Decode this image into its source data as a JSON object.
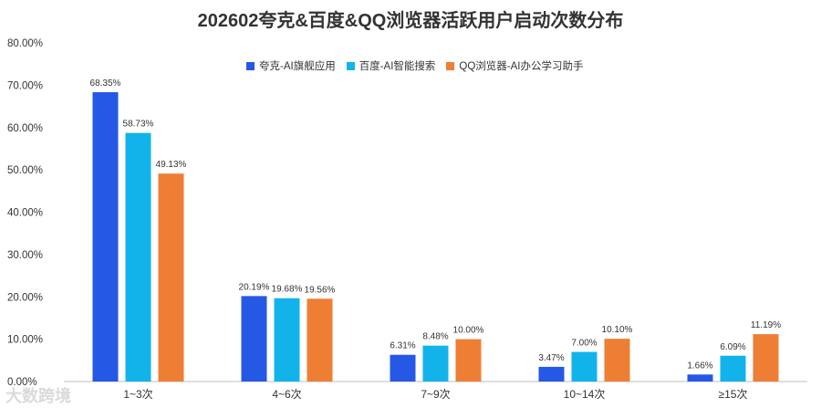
{
  "chart_data": {
    "type": "bar",
    "title": "202602夸克&百度&QQ浏览器活跃用户启动次数分布",
    "categories": [
      "1~3次",
      "4~6次",
      "7~9次",
      "10~14次",
      "≥15次"
    ],
    "series": [
      {
        "name": "夸克-AI旗舰应用",
        "color": "#2558E5",
        "values": [
          68.35,
          20.19,
          6.31,
          3.47,
          1.66
        ],
        "labels": [
          "68.35%",
          "20.19%",
          "6.31%",
          "3.47%",
          "1.66%"
        ]
      },
      {
        "name": "百度-AI智能搜索",
        "color": "#12B3EB",
        "values": [
          58.73,
          19.68,
          8.48,
          7.0,
          6.09
        ],
        "labels": [
          "58.73%",
          "19.68%",
          "8.48%",
          "7.00%",
          "6.09%"
        ]
      },
      {
        "name": "QQ浏览器-AI办公学习助手",
        "color": "#EE7E34",
        "values": [
          49.13,
          19.56,
          10.0,
          10.1,
          11.19
        ],
        "labels": [
          "49.13%",
          "19.56%",
          "10.00%",
          "10.10%",
          "11.19%"
        ]
      }
    ],
    "ylim": [
      0,
      80
    ],
    "yticks": [
      "0.00%",
      "10.00%",
      "20.00%",
      "30.00%",
      "40.00%",
      "50.00%",
      "60.00%",
      "70.00%",
      "80.00%"
    ],
    "grid": false,
    "legend_position": "top-right"
  },
  "watermark": "大数跨境"
}
